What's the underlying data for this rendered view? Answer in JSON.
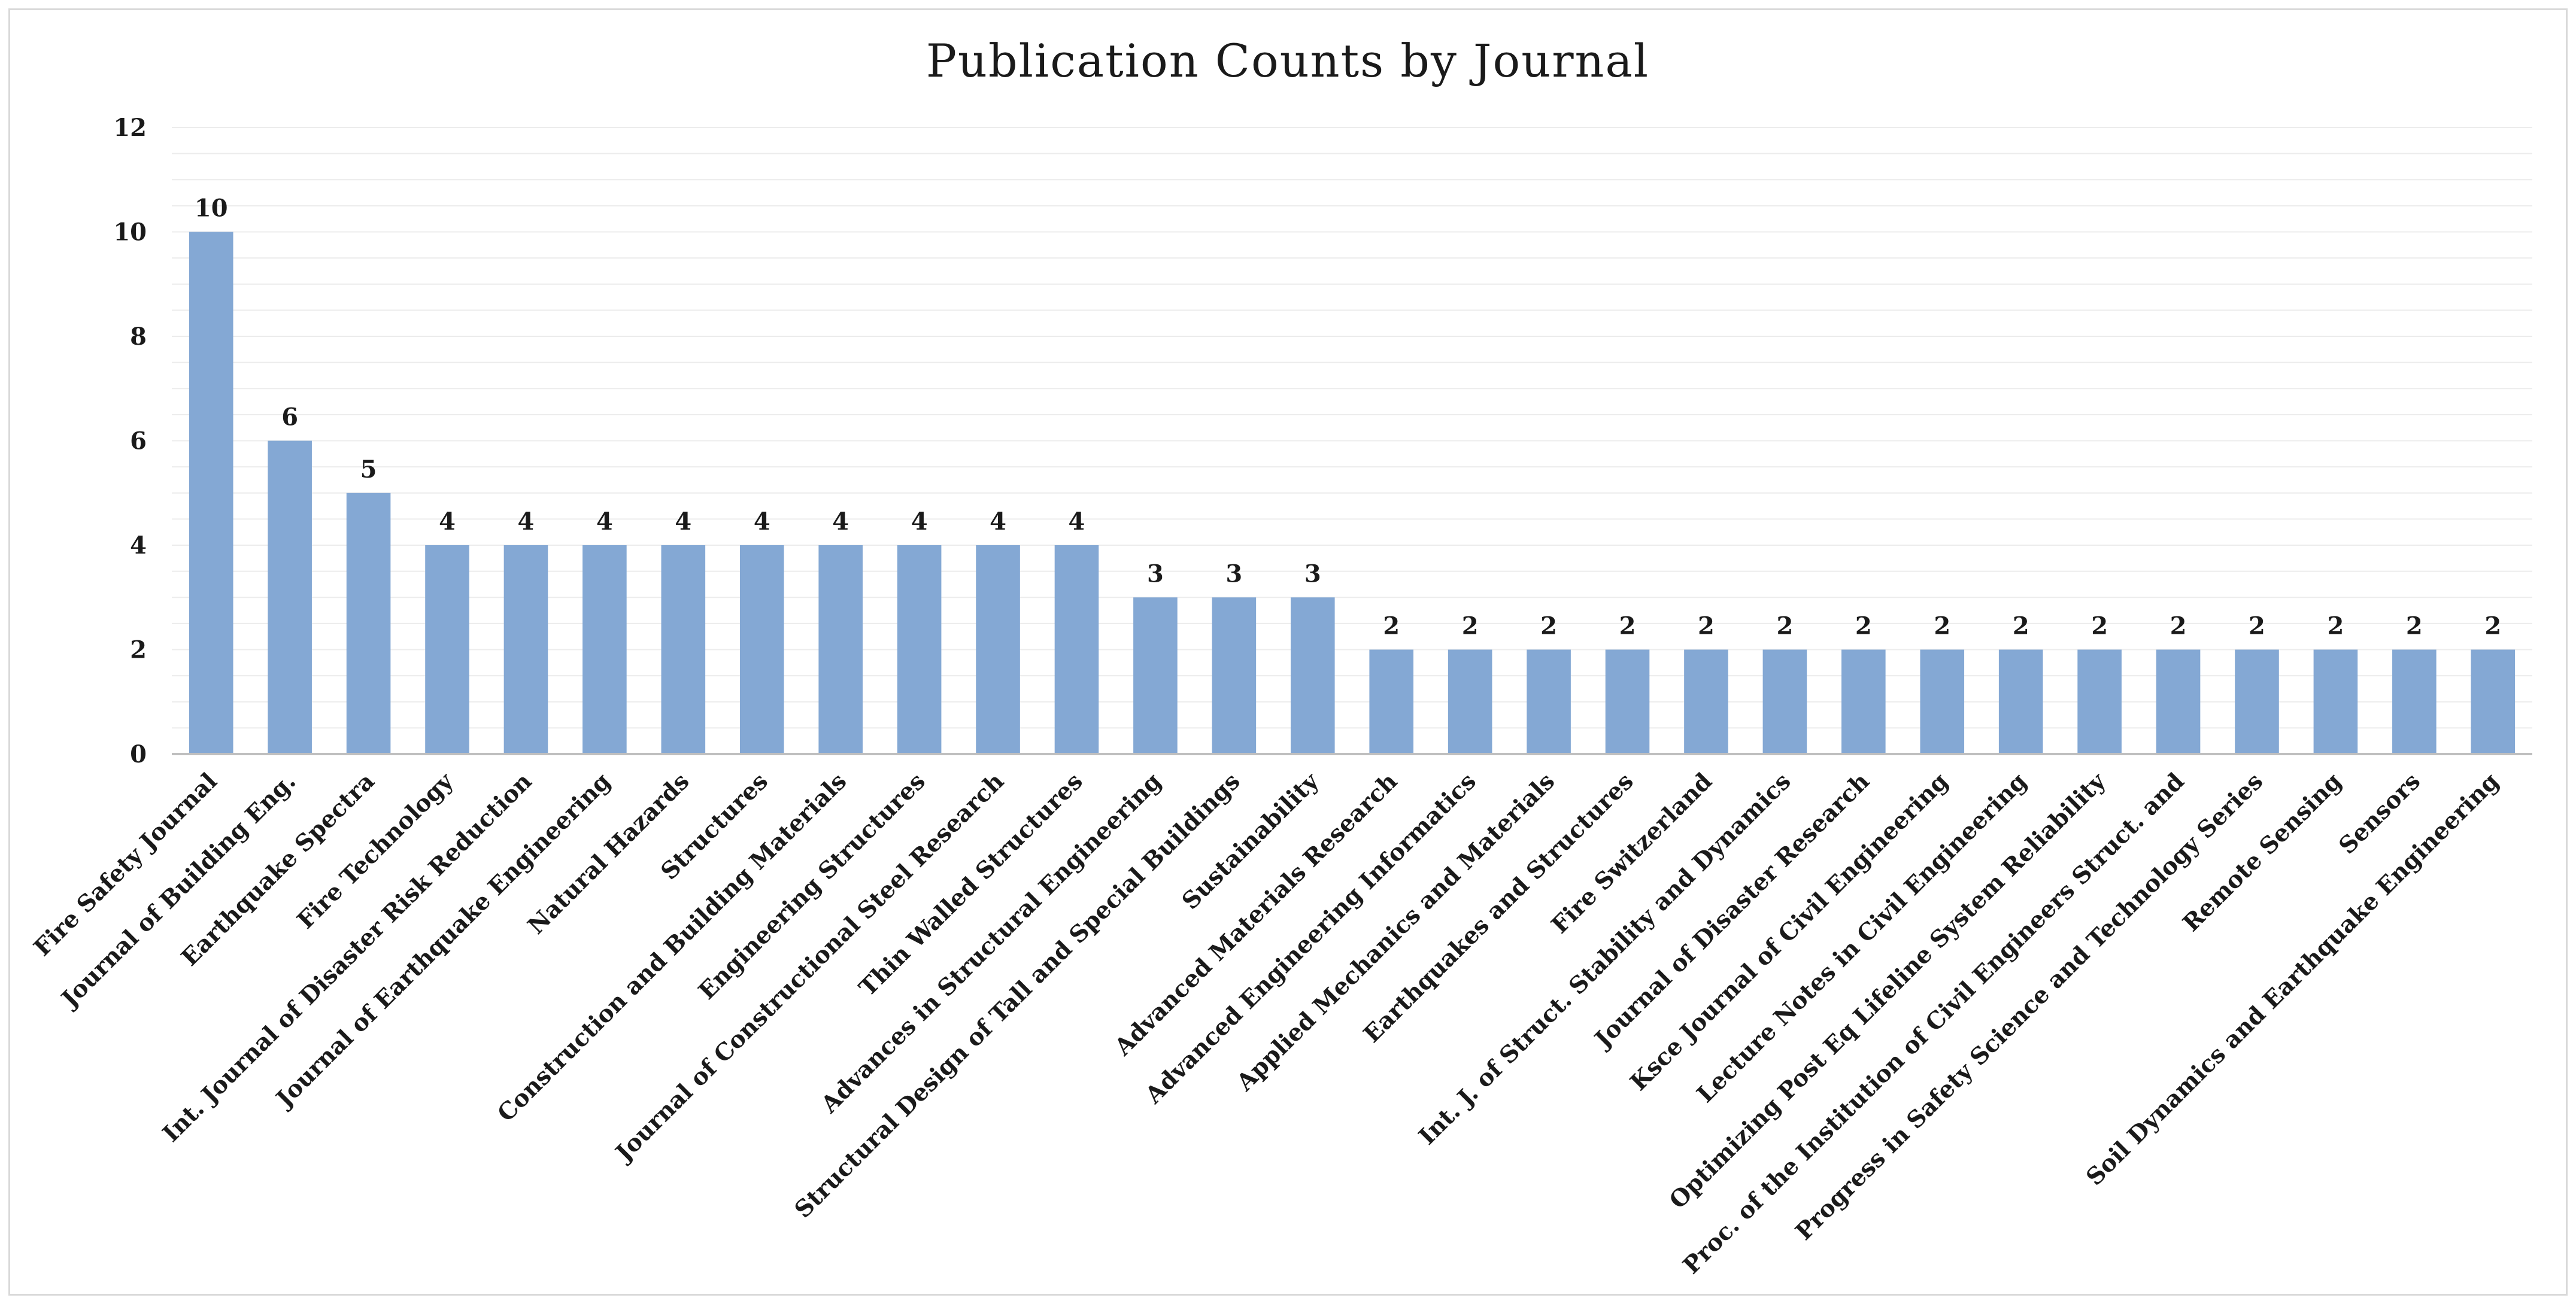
{
  "chart_data": {
    "type": "bar",
    "title": "Publication Counts by Journal",
    "xlabel": "",
    "ylabel": "",
    "ylim": [
      0,
      12
    ],
    "yticks": [
      0,
      2,
      4,
      6,
      8,
      10,
      12
    ],
    "minor_grid_step": 0.5,
    "grid": true,
    "legend": "none",
    "bar_color": "#84a8d4",
    "axis_color": "#bfbfbf",
    "grid_color": "#ececec",
    "categories": [
      "Fire Safety Journal",
      "Journal of Building Eng.",
      "Earthquake Spectra",
      "Fire Technology",
      "Int. Journal of Disaster Risk Reduction",
      "Journal of Earthquake Engineering",
      "Natural Hazards",
      "Structures",
      "Construction and Building Materials",
      "Engineering Structures",
      "Journal of Constructional Steel Research",
      "Thin Walled Structures",
      "Advances in Structural Engineering",
      "Structural Design of Tall and Special Buildings",
      "Sustainability",
      "Advanced Materials Research",
      "Advanced Engineering Informatics",
      "Applied Mechanics and Materials",
      "Earthquakes and Structures",
      "Fire Switzerland",
      "Int. J. of Struct. Stability and Dynamics",
      "Journal of Disaster Research",
      "Ksce Journal of Civil Engineering",
      "Lecture Notes in Civil Engineering",
      "Optimizing Post Eq Lifeline System Reliability",
      "Proc. of the Institution of Civil Engineers Struct. and",
      "Progress in Safety Science and Technology Series",
      "Remote Sensing",
      "Sensors",
      "Soil Dynamics and Earthquake Engineering"
    ],
    "values": [
      10,
      6,
      5,
      4,
      4,
      4,
      4,
      4,
      4,
      4,
      4,
      4,
      3,
      3,
      3,
      2,
      2,
      2,
      2,
      2,
      2,
      2,
      2,
      2,
      2,
      2,
      2,
      2,
      2,
      2
    ]
  }
}
